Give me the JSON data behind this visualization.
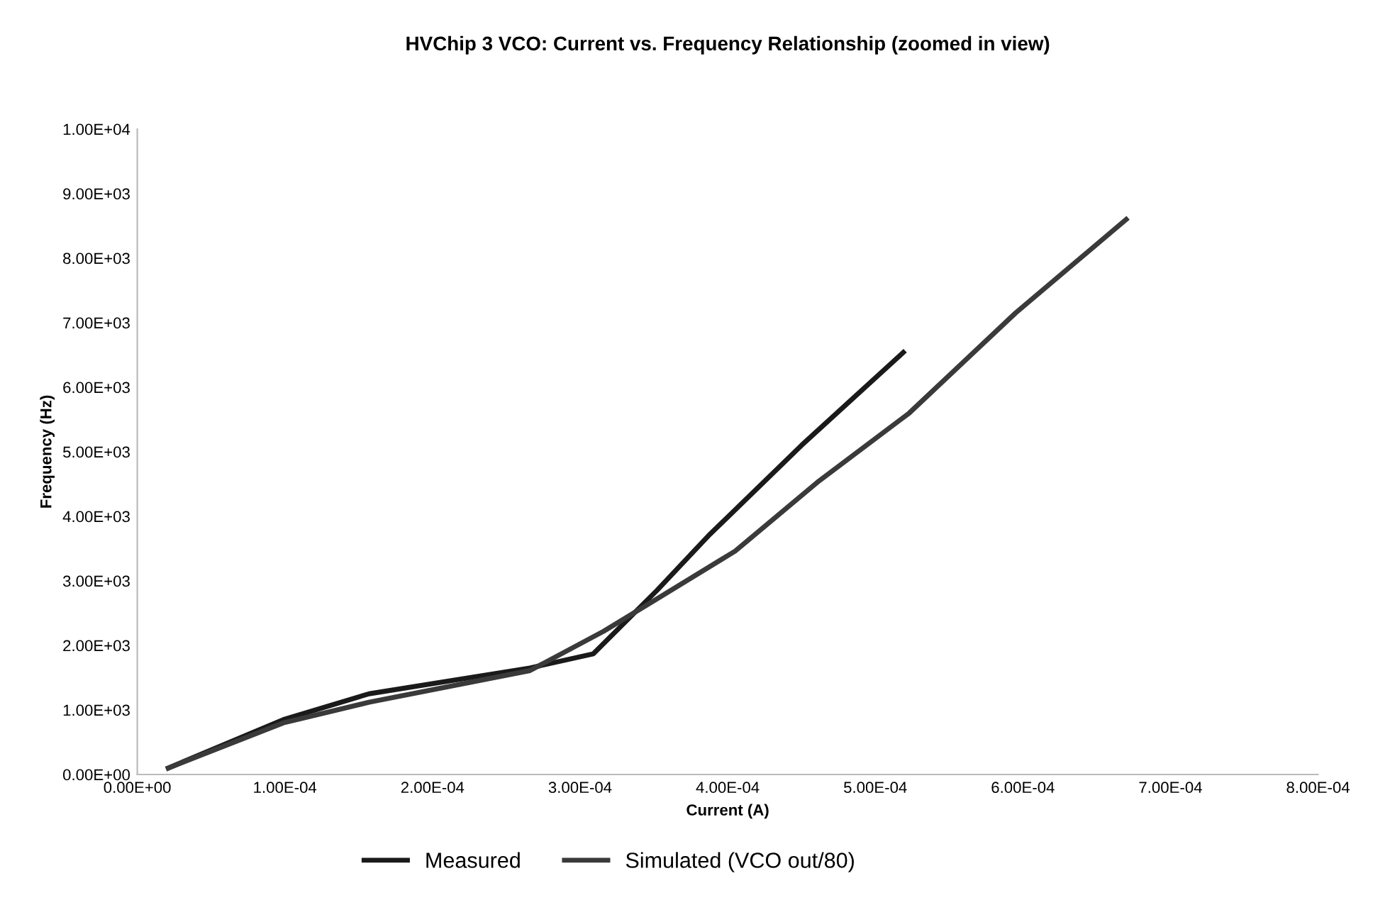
{
  "chart_data": {
    "type": "line",
    "title": "HVChip 3 VCO: Current vs. Frequency Relationship (zoomed in view)",
    "xlabel": "Current (A)",
    "ylabel": "Frequency (Hz)",
    "series": [
      {
        "name": "Measured",
        "color": "#1a1a1a",
        "x": [
          2.1e-05,
          9.9e-05,
          0.000157,
          0.000266,
          0.000309,
          0.000352,
          0.000387,
          0.00045,
          0.000519
        ],
        "values": [
          100,
          850,
          1250,
          1650,
          1870,
          2850,
          3700,
          5100,
          6540
        ]
      },
      {
        "name": "Simulated (VCO out/80)",
        "color": "#3a3a3a",
        "x": [
          2.1e-05,
          9.9e-05,
          0.000157,
          0.000266,
          0.000316,
          0.000352,
          0.000405,
          0.000462,
          0.000523,
          0.000595,
          0.00067
        ],
        "values": [
          100,
          800,
          1120,
          1610,
          2220,
          2720,
          3460,
          4550,
          5600,
          7150,
          8600
        ]
      }
    ],
    "xlim": [
      0,
      0.0008
    ],
    "ylim": [
      0,
      10000
    ],
    "xticks": [
      {
        "value": 0,
        "label": "0.00E+00"
      },
      {
        "value": 0.0001,
        "label": "1.00E-04"
      },
      {
        "value": 0.0002,
        "label": "2.00E-04"
      },
      {
        "value": 0.0003,
        "label": "3.00E-04"
      },
      {
        "value": 0.0004,
        "label": "4.00E-04"
      },
      {
        "value": 0.0005,
        "label": "5.00E-04"
      },
      {
        "value": 0.0006,
        "label": "6.00E-04"
      },
      {
        "value": 0.0007,
        "label": "7.00E-04"
      },
      {
        "value": 0.0008,
        "label": "8.00E-04"
      }
    ],
    "yticks": [
      {
        "value": 0,
        "label": "0.00E+00"
      },
      {
        "value": 1000,
        "label": "1.00E+03"
      },
      {
        "value": 2000,
        "label": "2.00E+03"
      },
      {
        "value": 3000,
        "label": "3.00E+03"
      },
      {
        "value": 4000,
        "label": "4.00E+03"
      },
      {
        "value": 5000,
        "label": "5.00E+03"
      },
      {
        "value": 6000,
        "label": "6.00E+03"
      },
      {
        "value": 7000,
        "label": "7.00E+03"
      },
      {
        "value": 8000,
        "label": "8.00E+03"
      },
      {
        "value": 9000,
        "label": "9.00E+03"
      },
      {
        "value": 10000,
        "label": "1.00E+04"
      }
    ],
    "legend": "bottom",
    "marker": "none",
    "line_style": "solid"
  }
}
